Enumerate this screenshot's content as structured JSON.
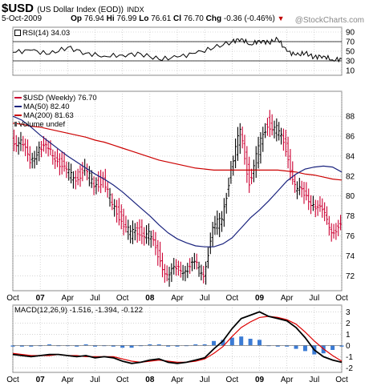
{
  "header": {
    "symbol": "$USD",
    "description": "(US Dollar Index (EOD))",
    "exchange": "INDX",
    "date": "5-Oct-2009",
    "open_label": "Op",
    "open": "76.94",
    "high_label": "Hi",
    "high": "76.99",
    "low_label": "Lo",
    "low": "76.61",
    "close_label": "Cl",
    "close": "76.70",
    "change_label": "Chg",
    "change": "-0.36 (-0.46%)",
    "arrow": "▼",
    "watermark": "@StockCharts.com"
  },
  "colors": {
    "price": "#cc0033",
    "price_up": "#000000",
    "ma50": "#1a237e",
    "ma200": "#cc0000",
    "macd": "#000000",
    "signal": "#dd0000",
    "histogram": "#3b7bd4",
    "rsi": "#000000",
    "grid": "#bbbbbb",
    "panel_border": "#888888"
  },
  "chart_data": [
    {
      "type": "line",
      "panel": "RSI",
      "label": "RSI(14) 34.03",
      "y_ticks": [
        10,
        30,
        50,
        70,
        90
      ],
      "ylim": [
        0,
        100
      ],
      "levels": [
        30,
        70
      ],
      "x": [
        "2006-10",
        "2006-12",
        "2007-02",
        "2007-04",
        "2007-06",
        "2007-08",
        "2007-10",
        "2007-12",
        "2008-02",
        "2008-04",
        "2008-06",
        "2008-08",
        "2008-10",
        "2008-11",
        "2008-12",
        "2009-01",
        "2009-02",
        "2009-03",
        "2009-04",
        "2009-05",
        "2009-06",
        "2009-07",
        "2009-08",
        "2009-09",
        "2009-10"
      ],
      "values": [
        48,
        52,
        44,
        58,
        46,
        40,
        42,
        45,
        33,
        38,
        46,
        57,
        70,
        76,
        64,
        72,
        68,
        75,
        50,
        42,
        46,
        38,
        40,
        32,
        34
      ]
    },
    {
      "type": "bar",
      "panel": "Price",
      "label": "$USD (Weekly) 76.70",
      "legend": [
        "MA(50) 82.40",
        "MA(200) 81.63",
        "Volume undef"
      ],
      "y_ticks": [
        72,
        74,
        76,
        78,
        80,
        82,
        84,
        86,
        88
      ],
      "ylim": [
        70.5,
        90.5
      ],
      "x_ticks": [
        "Oct",
        "07",
        "Apr",
        "Jul",
        "Oct",
        "08",
        "Apr",
        "Jul",
        "Oct",
        "09",
        "Apr",
        "Jul",
        "Oct"
      ],
      "x": [
        "2006-10",
        "2006-11",
        "2006-12",
        "2007-01",
        "2007-02",
        "2007-03",
        "2007-04",
        "2007-05",
        "2007-06",
        "2007-07",
        "2007-08",
        "2007-09",
        "2007-10",
        "2007-11",
        "2007-12",
        "2008-01",
        "2008-02",
        "2008-03",
        "2008-04",
        "2008-05",
        "2008-06",
        "2008-07",
        "2008-08",
        "2008-09",
        "2008-10",
        "2008-11",
        "2008-12",
        "2009-01",
        "2009-02",
        "2009-03",
        "2009-04",
        "2009-05",
        "2009-06",
        "2009-07",
        "2009-08",
        "2009-09",
        "2009-10"
      ],
      "series": [
        {
          "name": "$USD",
          "values": [
            85.8,
            85.2,
            83.6,
            84.8,
            84.6,
            83.8,
            82.2,
            82.0,
            82.4,
            81.2,
            81.6,
            79.0,
            77.8,
            76.0,
            76.6,
            76.0,
            74.2,
            72.0,
            72.6,
            72.8,
            73.0,
            72.4,
            76.4,
            78.0,
            82.5,
            86.6,
            81.4,
            84.6,
            87.4,
            86.6,
            84.8,
            81.0,
            80.0,
            79.4,
            78.2,
            76.8,
            76.7
          ]
        },
        {
          "name": "MA(50)",
          "values": [
            88.0,
            87.6,
            86.9,
            86.1,
            85.4,
            84.7,
            84.0,
            83.4,
            82.8,
            82.2,
            81.7,
            81.1,
            80.4,
            79.6,
            78.8,
            78.0,
            77.1,
            76.3,
            75.7,
            75.3,
            75.0,
            74.9,
            74.9,
            75.2,
            75.8,
            76.8,
            77.8,
            78.6,
            79.5,
            80.5,
            81.5,
            82.2,
            82.7,
            82.9,
            83.0,
            82.9,
            82.4
          ]
        },
        {
          "name": "MA(200)",
          "values": [
            87.3,
            87.2,
            87.0,
            86.9,
            86.7,
            86.5,
            86.3,
            86.1,
            85.9,
            85.6,
            85.4,
            85.1,
            84.8,
            84.5,
            84.2,
            83.9,
            83.6,
            83.4,
            83.2,
            83.0,
            82.8,
            82.7,
            82.6,
            82.6,
            82.6,
            82.6,
            82.6,
            82.6,
            82.6,
            82.6,
            82.5,
            82.4,
            82.2,
            82.1,
            81.9,
            81.7,
            81.6
          ]
        }
      ]
    },
    {
      "type": "line",
      "panel": "MACD",
      "label": "MACD(12,26,9) -1.516, -1.394, -0.122",
      "y_ticks": [
        -2,
        -1,
        0,
        1,
        2,
        3
      ],
      "ylim": [
        -2.4,
        3.6
      ],
      "x_ticks": [
        "Oct",
        "07",
        "Apr",
        "Jul",
        "Oct",
        "08",
        "Apr",
        "Jul",
        "Oct",
        "09",
        "Apr",
        "Jul",
        "Oct"
      ],
      "x": [
        "2006-10",
        "2006-11",
        "2006-12",
        "2007-01",
        "2007-02",
        "2007-03",
        "2007-04",
        "2007-05",
        "2007-06",
        "2007-07",
        "2007-08",
        "2007-09",
        "2007-10",
        "2007-11",
        "2007-12",
        "2008-01",
        "2008-02",
        "2008-03",
        "2008-04",
        "2008-05",
        "2008-06",
        "2008-07",
        "2008-08",
        "2008-09",
        "2008-10",
        "2008-11",
        "2008-12",
        "2009-01",
        "2009-02",
        "2009-03",
        "2009-04",
        "2009-05",
        "2009-06",
        "2009-07",
        "2009-08",
        "2009-09",
        "2009-10"
      ],
      "series": [
        {
          "name": "MACD",
          "values": [
            -0.8,
            -0.9,
            -1.0,
            -0.9,
            -0.8,
            -0.8,
            -0.9,
            -1.0,
            -0.9,
            -1.1,
            -1.0,
            -1.1,
            -1.4,
            -1.6,
            -1.5,
            -1.3,
            -1.2,
            -1.5,
            -1.6,
            -1.5,
            -1.3,
            -1.1,
            -0.3,
            0.4,
            1.5,
            2.4,
            2.7,
            3.0,
            2.6,
            2.4,
            2.2,
            1.6,
            0.7,
            -0.4,
            -1.0,
            -1.3,
            -1.5
          ]
        },
        {
          "name": "Signal",
          "values": [
            -0.7,
            -0.8,
            -0.9,
            -0.9,
            -0.9,
            -0.8,
            -0.9,
            -0.9,
            -1.0,
            -1.0,
            -1.0,
            -1.0,
            -1.2,
            -1.4,
            -1.5,
            -1.4,
            -1.3,
            -1.4,
            -1.5,
            -1.5,
            -1.4,
            -1.2,
            -0.7,
            -0.1,
            0.8,
            1.6,
            2.1,
            2.5,
            2.6,
            2.5,
            2.3,
            1.9,
            1.2,
            0.4,
            -0.3,
            -0.9,
            -1.4
          ]
        }
      ]
    }
  ]
}
